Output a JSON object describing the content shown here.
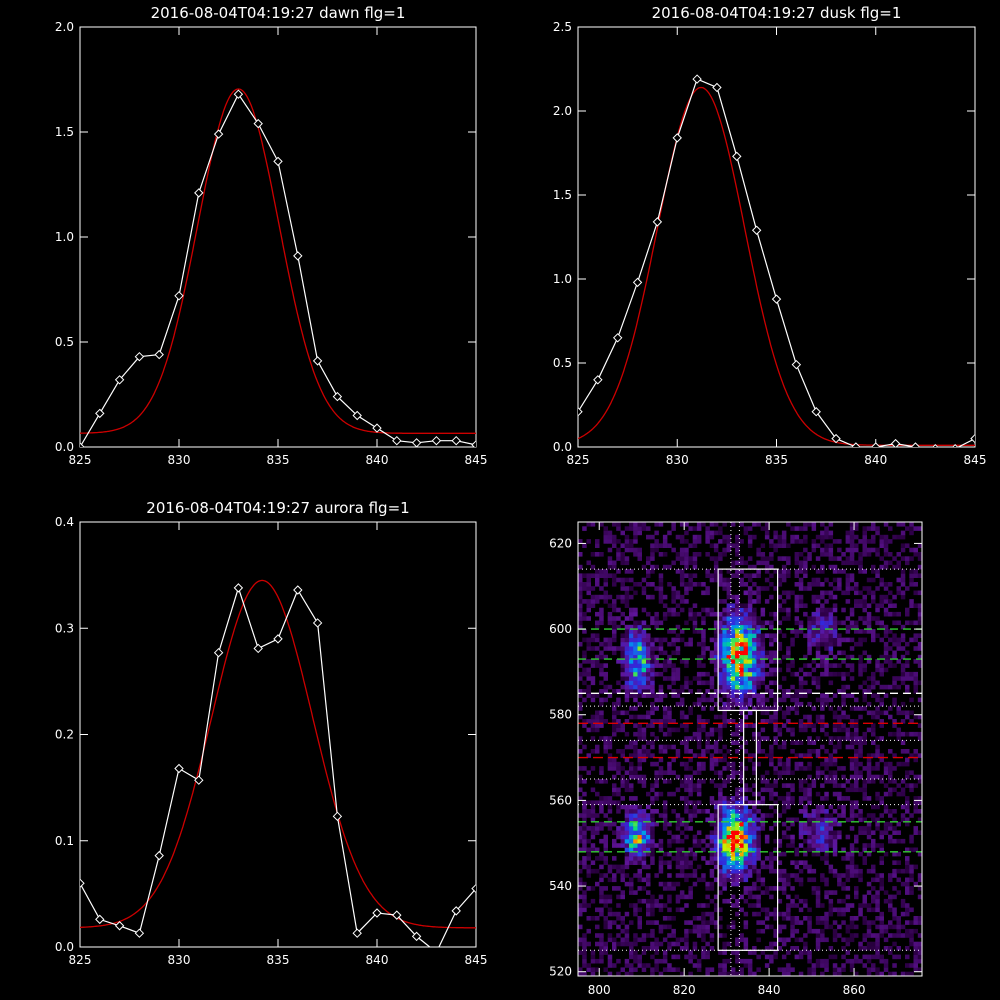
{
  "colors": {
    "background": "#000000",
    "axes": "#ffffff",
    "data_line": "#ffffff",
    "fit_line": "#cc0000",
    "green_dash": "#33cc33",
    "red_dash": "#dd0000"
  },
  "chart_data": [
    {
      "type": "line",
      "title": "2016-08-04T04:19:27 dawn flg=1",
      "xlim": [
        825,
        845
      ],
      "ylim": [
        0,
        2.0
      ],
      "xticks": [
        825,
        830,
        835,
        840,
        845
      ],
      "xtick_labels": [
        "825",
        "830",
        "835",
        "840",
        "845"
      ],
      "yticks": [
        0,
        0.5,
        1.0,
        1.5,
        2.0
      ],
      "ytick_labels": [
        "0.0",
        "0.5",
        "1.0",
        "1.5",
        "2.0"
      ],
      "series": [
        {
          "style": "white line with diamond markers",
          "x": [
            825,
            826,
            827,
            828,
            829,
            830,
            831,
            832,
            833,
            834,
            835,
            836,
            837,
            838,
            839,
            840,
            841,
            842,
            843,
            844,
            845
          ],
          "y": [
            0.0,
            0.16,
            0.32,
            0.43,
            0.44,
            0.72,
            1.21,
            1.49,
            1.68,
            1.54,
            1.36,
            0.91,
            0.41,
            0.24,
            0.15,
            0.09,
            0.03,
            0.02,
            0.03,
            0.03,
            0.01
          ]
        },
        {
          "style": "red gaussian fit",
          "fit": {
            "amplitude": 1.64,
            "center": 833.0,
            "sigma": 2.05,
            "offset": 0.065
          }
        }
      ]
    },
    {
      "type": "line",
      "title": "2016-08-04T04:19:27 dusk flg=1",
      "xlim": [
        825,
        845
      ],
      "ylim": [
        0,
        2.5
      ],
      "xticks": [
        825,
        830,
        835,
        840,
        845
      ],
      "xtick_labels": [
        "825",
        "830",
        "835",
        "840",
        "845"
      ],
      "yticks": [
        0,
        0.5,
        1.0,
        1.5,
        2.0,
        2.5
      ],
      "ytick_labels": [
        "0.0",
        "0.5",
        "1.0",
        "1.5",
        "2.0",
        "2.5"
      ],
      "series": [
        {
          "style": "white line with diamond markers",
          "x": [
            825,
            826,
            827,
            828,
            829,
            830,
            831,
            832,
            833,
            834,
            835,
            836,
            837,
            838,
            839,
            840,
            841,
            842,
            843,
            844,
            845
          ],
          "y": [
            0.21,
            0.4,
            0.65,
            0.98,
            1.34,
            1.84,
            2.19,
            2.14,
            1.73,
            1.29,
            0.88,
            0.49,
            0.21,
            0.05,
            0.0,
            0.0,
            0.02,
            0.0,
            -0.01,
            -0.01,
            0.05
          ]
        },
        {
          "style": "red gaussian fit",
          "fit": {
            "amplitude": 2.13,
            "center": 831.2,
            "sigma": 2.2,
            "offset": 0.01
          }
        }
      ]
    },
    {
      "type": "line",
      "title": "2016-08-04T04:19:27 aurora flg=1",
      "xlim": [
        825,
        845
      ],
      "ylim": [
        0,
        0.4
      ],
      "xticks": [
        825,
        830,
        835,
        840,
        845
      ],
      "xtick_labels": [
        "825",
        "830",
        "835",
        "840",
        "845"
      ],
      "yticks": [
        0,
        0.1,
        0.2,
        0.3,
        0.4
      ],
      "ytick_labels": [
        "0.0",
        "0.1",
        "0.2",
        "0.3",
        "0.4"
      ],
      "series": [
        {
          "style": "white line with diamond markers",
          "x": [
            825,
            826,
            827,
            828,
            829,
            830,
            831,
            832,
            833,
            834,
            835,
            836,
            837,
            838,
            839,
            840,
            841,
            842,
            843,
            844,
            845
          ],
          "y": [
            0.06,
            0.026,
            0.02,
            0.013,
            0.086,
            0.168,
            0.157,
            0.277,
            0.338,
            0.281,
            0.29,
            0.336,
            0.305,
            0.123,
            0.013,
            0.032,
            0.03,
            0.01,
            -0.005,
            0.034,
            0.055
          ]
        },
        {
          "style": "red gaussian fit",
          "fit": {
            "amplitude": 0.327,
            "center": 834.2,
            "sigma": 2.55,
            "offset": 0.018
          }
        }
      ]
    },
    {
      "type": "heatmap",
      "xlim": [
        795,
        876
      ],
      "ylim": [
        519,
        625
      ],
      "xticks": [
        800,
        820,
        840,
        860
      ],
      "xtick_labels": [
        "800",
        "820",
        "840",
        "860"
      ],
      "yticks": [
        520,
        540,
        560,
        580,
        600,
        620
      ],
      "ytick_labels": [
        "520",
        "540",
        "560",
        "580",
        "600",
        "620"
      ],
      "hot_spots": [
        {
          "x": 833,
          "y": 594,
          "sx": 3.0,
          "sy": 6.0,
          "intensity": 1.0
        },
        {
          "x": 832,
          "y": 551,
          "sx": 2.8,
          "sy": 5.0,
          "intensity": 1.05
        },
        {
          "x": 809,
          "y": 593,
          "sx": 2.2,
          "sy": 5.0,
          "intensity": 0.6
        },
        {
          "x": 809,
          "y": 552,
          "sx": 2.2,
          "sy": 3.5,
          "intensity": 0.7
        },
        {
          "x": 853,
          "y": 600,
          "sx": 3.0,
          "sy": 4.0,
          "intensity": 0.25
        },
        {
          "x": 852,
          "y": 552,
          "sx": 3.0,
          "sy": 4.0,
          "intensity": 0.28
        }
      ],
      "boxes": [
        {
          "x": [
            828,
            842
          ],
          "y": [
            581,
            614
          ]
        },
        {
          "x": [
            828,
            842
          ],
          "y": [
            525,
            559
          ]
        }
      ],
      "connector": {
        "x": [
          834,
          837
        ],
        "y": [
          559,
          581
        ]
      },
      "green_dashed_y": [
        600,
        593,
        555,
        548
      ],
      "white_dashed_y": [
        585
      ],
      "red_dashed_y": [
        578,
        570
      ],
      "dotted_y": [
        614,
        582,
        574,
        565,
        559,
        525
      ],
      "dotted_x": [
        831,
        833
      ]
    }
  ]
}
